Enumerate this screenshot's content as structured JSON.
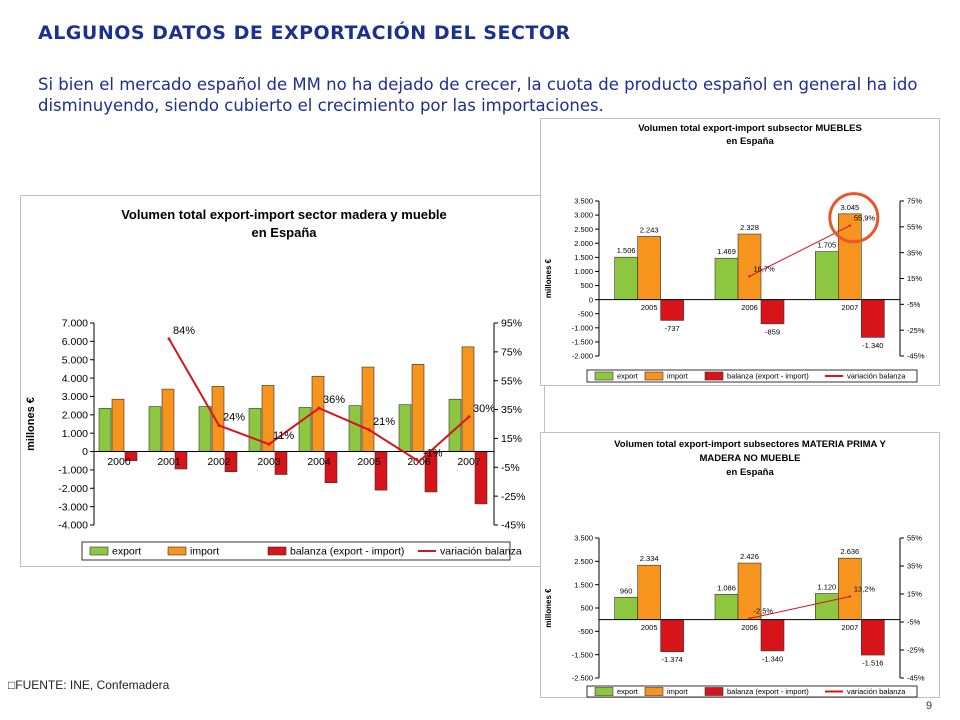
{
  "page": {
    "title": "ALGUNOS DATOS DE EXPORTACIÓN DEL SECTOR",
    "subtitle": "Si bien el mercado español de MM no ha dejado de crecer, la cuota de producto español en general ha ido disminuyendo, siendo cubierto el crecimiento por las importaciones.",
    "source": "FUENTE: INE, Confemadera",
    "page_number": "9"
  },
  "colors": {
    "export": "#8dc63f",
    "import": "#f7941d",
    "balanza": "#d7141a",
    "variacion": "#d7141a",
    "title": "#1d2f8f",
    "highlight_circle": "#e8572a"
  },
  "chart_data": [
    {
      "id": "main",
      "type": "bar",
      "title": [
        "Volumen total export-import sector madera y mueble",
        "en España"
      ],
      "ylabel": "millones €",
      "categories": [
        "2000",
        "2001",
        "2002",
        "2003",
        "2004",
        "2005",
        "2006",
        "2007"
      ],
      "ylim": [
        -4000,
        7000
      ],
      "yticks": [
        -4000,
        -3000,
        -2000,
        -1000,
        0,
        1000,
        2000,
        3000,
        4000,
        5000,
        6000,
        7000
      ],
      "ytick_labels": [
        "-4.000",
        "-3.000",
        "-2.000",
        "-1.000",
        "0",
        "1.000",
        "2.000",
        "3.000",
        "4.000",
        "5.000",
        "6.000",
        "7.000"
      ],
      "y2lim": [
        -45,
        95
      ],
      "y2ticks": [
        -45,
        -25,
        -5,
        15,
        35,
        55,
        75,
        95
      ],
      "y2tick_labels": [
        "-45%",
        "-25%",
        "-5%",
        "15%",
        "35%",
        "55%",
        "75%",
        "95%"
      ],
      "series": [
        {
          "name": "export",
          "key": "export",
          "values": [
            2350,
            2450,
            2450,
            2350,
            2400,
            2500,
            2550,
            2850
          ]
        },
        {
          "name": "import",
          "key": "import",
          "values": [
            2850,
            3400,
            3550,
            3600,
            4100,
            4600,
            4750,
            5700
          ]
        },
        {
          "name": "balanza (export - import)",
          "key": "balanza",
          "values": [
            -500,
            -950,
            -1100,
            -1250,
            -1700,
            -2100,
            -2200,
            -2850
          ]
        },
        {
          "name": "variación balanza",
          "key": "variacion",
          "line": true,
          "values": [
            null,
            84,
            24,
            11,
            36,
            21,
            -1,
            30
          ],
          "labels": [
            null,
            "84%",
            "24%",
            "11%",
            "36%",
            "21%",
            "-1%",
            "30%"
          ]
        }
      ],
      "legend": "bottom"
    },
    {
      "id": "muebles",
      "type": "bar",
      "title": [
        "Volumen total export-import subsector MUEBLES",
        "en España"
      ],
      "ylabel": "millones €",
      "categories": [
        "2005",
        "2006",
        "2007"
      ],
      "ylim": [
        -2000,
        3500
      ],
      "yticks": [
        -2000,
        -1500,
        -1000,
        -500,
        0,
        500,
        1000,
        1500,
        2000,
        2500,
        3000,
        3500
      ],
      "ytick_labels": [
        "-2.000",
        "-1.500",
        "-1.000",
        "-500",
        "0",
        "500",
        "1.000",
        "1.500",
        "2.000",
        "2.500",
        "3.000",
        "3.500"
      ],
      "y2lim": [
        -45,
        75
      ],
      "y2ticks": [
        -45,
        -25,
        -5,
        15,
        35,
        55,
        75
      ],
      "y2tick_labels": [
        "-45%",
        "-25%",
        "-5%",
        "15%",
        "35%",
        "55%",
        "75%"
      ],
      "series": [
        {
          "name": "export",
          "key": "export",
          "values": [
            1506,
            1469,
            1705
          ],
          "labels": [
            "1.506",
            "1.469",
            "1.705"
          ]
        },
        {
          "name": "import",
          "key": "import",
          "values": [
            2243,
            2328,
            3045
          ],
          "labels": [
            "2.243",
            "2.328",
            "3.045"
          ]
        },
        {
          "name": "balanza (export - import)",
          "key": "balanza",
          "values": [
            -737,
            -859,
            -1340
          ],
          "labels": [
            "-737",
            "-859",
            "-1.340"
          ]
        },
        {
          "name": "variación balanza",
          "key": "variacion",
          "line": true,
          "values": [
            null,
            16.7,
            55.9
          ],
          "labels": [
            null,
            "16,7%",
            "55,9%"
          ]
        }
      ],
      "legend": "bottom"
    },
    {
      "id": "materia",
      "type": "bar",
      "title": [
        "Volumen total export-import subsectores MATERIA PRIMA Y",
        "MADERA NO MUEBLE",
        "en España"
      ],
      "ylabel": "millones €",
      "categories": [
        "2005",
        "2006",
        "2007"
      ],
      "ylim": [
        -2500,
        3500
      ],
      "yticks": [
        -2500,
        -1500,
        -500,
        500,
        1500,
        2500,
        3500
      ],
      "ytick_labels": [
        "-2.500",
        "-1.500",
        "-500",
        "500",
        "1.500",
        "2.500",
        "3.500"
      ],
      "y2lim": [
        -45,
        55
      ],
      "y2ticks": [
        -45,
        -25,
        -5,
        15,
        35,
        55
      ],
      "y2tick_labels": [
        "-45%",
        "-25%",
        "-5%",
        "15%",
        "35%",
        "55%"
      ],
      "series": [
        {
          "name": "export",
          "key": "export",
          "values": [
            960,
            1086,
            1120
          ],
          "labels": [
            "960",
            "1.086",
            "1.120"
          ]
        },
        {
          "name": "import",
          "key": "import",
          "values": [
            2334,
            2426,
            2636
          ],
          "labels": [
            "2.334",
            "2.426",
            "2.636"
          ]
        },
        {
          "name": "balanza (export - import)",
          "key": "balanza",
          "values": [
            -1374,
            -1340,
            -1516
          ],
          "labels": [
            "-1.374",
            "-1.340",
            "-1.516"
          ]
        },
        {
          "name": "variación balanza",
          "key": "variacion",
          "line": true,
          "values": [
            null,
            -2.5,
            13.2
          ],
          "labels": [
            null,
            "-2,5%",
            "13,2%"
          ]
        }
      ],
      "legend": "bottom"
    }
  ]
}
